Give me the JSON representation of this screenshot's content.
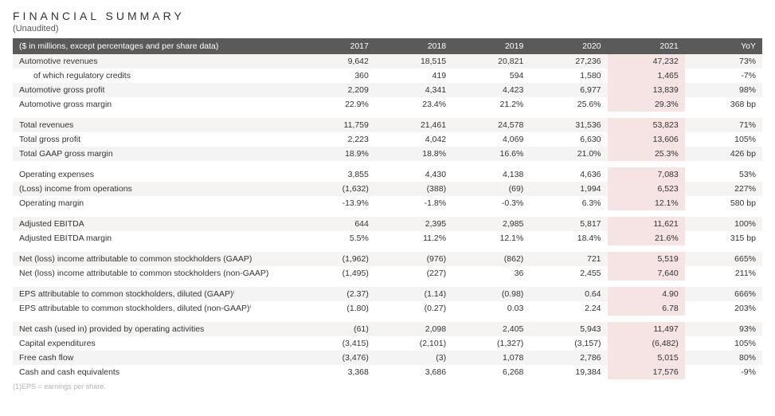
{
  "title": "FINANCIAL SUMMARY",
  "subtitle": "(Unaudited)",
  "header_note": "($ in millions, except percentages and per share data)",
  "columns": [
    "2017",
    "2018",
    "2019",
    "2020",
    "2021",
    "YoY"
  ],
  "footnote": "(1)EPS = earnings per share.",
  "colors": {
    "header_bg": "#5a5a5a",
    "header_fg": "#ffffff",
    "row_alt_bg": "#f6f4f3",
    "highlight_bg": "#f6e4e4",
    "text": "#333333"
  },
  "rows": [
    {
      "label": "Automotive revenues",
      "v": [
        "9,642",
        "18,515",
        "20,821",
        "27,236",
        "47,232",
        "73%"
      ]
    },
    {
      "label": "of which regulatory credits",
      "indent": true,
      "v": [
        "360",
        "419",
        "594",
        "1,580",
        "1,465",
        "-7%"
      ]
    },
    {
      "label": "Automotive gross profit",
      "v": [
        "2,209",
        "4,341",
        "4,423",
        "6,977",
        "13,839",
        "98%"
      ]
    },
    {
      "label": "Automotive gross margin",
      "v": [
        "22.9%",
        "23.4%",
        "21.2%",
        "25.6%",
        "29.3%",
        "368 bp"
      ]
    },
    {
      "spacer": true
    },
    {
      "label": "Total revenues",
      "v": [
        "11,759",
        "21,461",
        "24,578",
        "31,536",
        "53,823",
        "71%"
      ]
    },
    {
      "label": "Total gross profit",
      "v": [
        "2,223",
        "4,042",
        "4,069",
        "6,630",
        "13,606",
        "105%"
      ]
    },
    {
      "label": "Total GAAP gross margin",
      "v": [
        "18.9%",
        "18.8%",
        "16.6%",
        "21.0%",
        "25.3%",
        "426 bp"
      ]
    },
    {
      "spacer": true
    },
    {
      "label": "Operating expenses",
      "v": [
        "3,855",
        "4,430",
        "4,138",
        "4,636",
        "7,083",
        "53%"
      ]
    },
    {
      "label": "(Loss) income from operations",
      "v": [
        "(1,632)",
        "(388)",
        "(69)",
        "1,994",
        "6,523",
        "227%"
      ]
    },
    {
      "label": "Operating margin",
      "v": [
        "-13.9%",
        "-1.8%",
        "-0.3%",
        "6.3%",
        "12.1%",
        "580 bp"
      ]
    },
    {
      "spacer": true
    },
    {
      "label": "Adjusted EBITDA",
      "v": [
        "644",
        "2,395",
        "2,985",
        "5,817",
        "11,621",
        "100%"
      ]
    },
    {
      "label": "Adjusted EBITDA margin",
      "v": [
        "5.5%",
        "11.2%",
        "12.1%",
        "18.4%",
        "21.6%",
        "315 bp"
      ]
    },
    {
      "spacer": true
    },
    {
      "label": "Net (loss) income attributable to common stockholders (GAAP)",
      "v": [
        "(1,962)",
        "(976)",
        "(862)",
        "721",
        "5,519",
        "665%"
      ]
    },
    {
      "label": "Net (loss) income attributable to common stockholders (non-GAAP)",
      "v": [
        "(1,495)",
        "(227)",
        "36",
        "2,455",
        "7,640",
        "211%"
      ]
    },
    {
      "spacer": true
    },
    {
      "label": "EPS attributable to common stockholders, diluted (GAAP)ⁱ",
      "v": [
        "(2.37)",
        "(1.14)",
        "(0.98)",
        "0.64",
        "4.90",
        "666%"
      ]
    },
    {
      "label": "EPS attributable to common stockholders, diluted (non-GAAP)ⁱ",
      "v": [
        "(1.80)",
        "(0.27)",
        "0.03",
        "2.24",
        "6.78",
        "203%"
      ]
    },
    {
      "spacer": true
    },
    {
      "label": "Net cash (used in) provided by operating activities",
      "v": [
        "(61)",
        "2,098",
        "2,405",
        "5,943",
        "11,497",
        "93%"
      ]
    },
    {
      "label": "Capital expenditures",
      "v": [
        "(3,415)",
        "(2,101)",
        "(1,327)",
        "(3,157)",
        "(6,482)",
        "105%"
      ]
    },
    {
      "label": "Free cash flow",
      "v": [
        "(3,476)",
        "(3)",
        "1,078",
        "2,786",
        "5,015",
        "80%"
      ]
    },
    {
      "label": "Cash and cash equivalents",
      "v": [
        "3,368",
        "3,686",
        "6,268",
        "19,384",
        "17,576",
        "-9%"
      ]
    }
  ]
}
